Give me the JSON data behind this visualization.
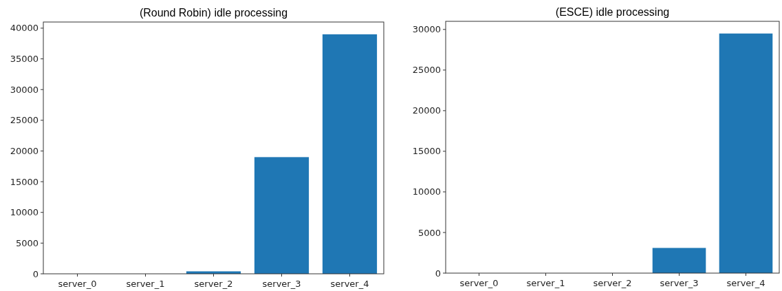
{
  "chart_data": [
    {
      "type": "bar",
      "title": "(Round Robin) idle processing",
      "categories": [
        "server_0",
        "server_1",
        "server_2",
        "server_3",
        "server_4"
      ],
      "values": [
        0,
        0,
        400,
        19000,
        39000
      ],
      "color": "#1f77b4",
      "ylim": [
        0,
        41000
      ],
      "yticks": [
        0,
        5000,
        10000,
        15000,
        20000,
        25000,
        30000,
        35000,
        40000
      ]
    },
    {
      "type": "bar",
      "title": "(ESCE) idle processing",
      "categories": [
        "server_0",
        "server_1",
        "server_2",
        "server_3",
        "server_4"
      ],
      "values": [
        0,
        0,
        0,
        3100,
        29500
      ],
      "color": "#1f77b4",
      "ylim": [
        0,
        31000
      ],
      "yticks": [
        0,
        5000,
        10000,
        15000,
        20000,
        25000,
        30000
      ]
    }
  ]
}
